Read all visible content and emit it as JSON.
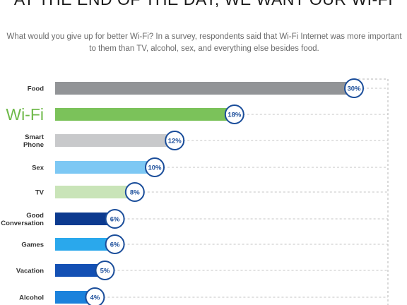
{
  "header": {
    "title": "AT THE END OF THE DAY, WE WANT OUR WI-FI",
    "subtitle_line1": "What would you give up for better Wi-Fi? In a survey, respondents said that Wi-Fi Internet was more important",
    "subtitle_line2": "to them than TV, alcohol, sex, and everything else besides food."
  },
  "chart_data": {
    "type": "bar",
    "orientation": "horizontal",
    "categories": [
      "Food",
      "Wi-Fi",
      "Smart Phone",
      "Sex",
      "TV",
      "Good Conversation",
      "Games",
      "Vacation",
      "Alcohol"
    ],
    "values": [
      30,
      18,
      12,
      10,
      8,
      6,
      6,
      5,
      4
    ],
    "value_labels": [
      "30%",
      "18%",
      "12%",
      "10%",
      "8%",
      "6%",
      "6%",
      "5%",
      "4%"
    ],
    "bar_colors": [
      "#929497",
      "#7bc25a",
      "#c8c9cb",
      "#7dc8f4",
      "#c9e4b8",
      "#0c3a8f",
      "#2aa8ec",
      "#1350b4",
      "#1b82dc"
    ],
    "highlight_category": "Wi-Fi",
    "highlight_color": "#6fb94a",
    "label_circle_color": "#1a4d9a",
    "grid": "dashed reference box to the right"
  }
}
